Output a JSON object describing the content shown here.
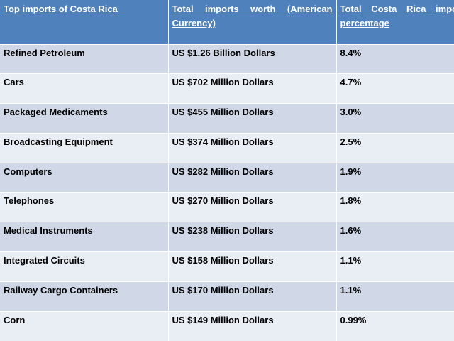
{
  "table": {
    "headers": [
      "Top imports of Costa Rica",
      "Total imports worth (American Currency)",
      "Total Costa Rica import percentage"
    ],
    "rows": [
      [
        "Refined Petroleum",
        "US $1.26 Billion Dollars",
        "8.4%"
      ],
      [
        "Cars",
        "US $702 Million Dollars",
        "4.7%"
      ],
      [
        "Packaged Medicaments",
        "US $455 Million Dollars",
        "3.0%"
      ],
      [
        "Broadcasting Equipment",
        "US $374 Million Dollars",
        "2.5%"
      ],
      [
        "Computers",
        "US $282 Million Dollars",
        "1.9%"
      ],
      [
        "Telephones",
        "US $270 Million Dollars",
        "1.8%"
      ],
      [
        "Medical Instruments",
        "US $238 Million Dollars",
        "1.6%"
      ],
      [
        "Integrated Circuits",
        "US $158 Million Dollars",
        "1.1%"
      ],
      [
        "Railway Cargo Containers",
        "US $170 Million Dollars",
        "1.1%"
      ],
      [
        "Corn",
        "US $149 Million Dollars",
        "0.99%"
      ]
    ]
  },
  "colors": {
    "header_bg": "#4f81bd",
    "row_odd_bg": "#d0d8e8",
    "row_even_bg": "#e9edf4"
  }
}
